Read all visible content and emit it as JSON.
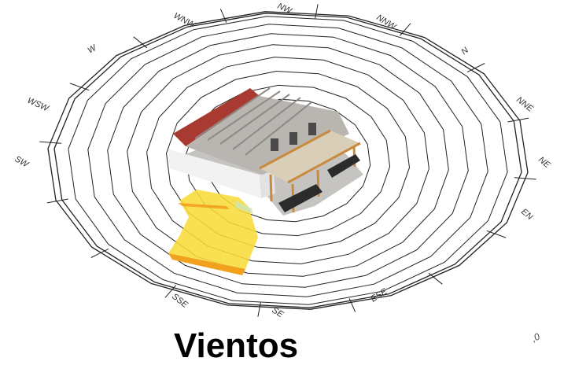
{
  "title": "Vientos",
  "corner_text": ",0",
  "directions": [
    "NW",
    "NNW",
    "N",
    "NNE",
    "NE",
    "EN",
    "ESE",
    "SE",
    "SSE",
    "SW",
    "WSW",
    "W",
    "WNW"
  ],
  "colors": {
    "ring": "#222222",
    "roof_red": "#a83a32",
    "roof_grey": "#b9b6b1",
    "wall": "#eeeeee",
    "wood": "#c98a3e",
    "bench": "#2b2b2b",
    "highlight_yellow": "#f7dc3a",
    "highlight_orange": "#f2a11f"
  }
}
